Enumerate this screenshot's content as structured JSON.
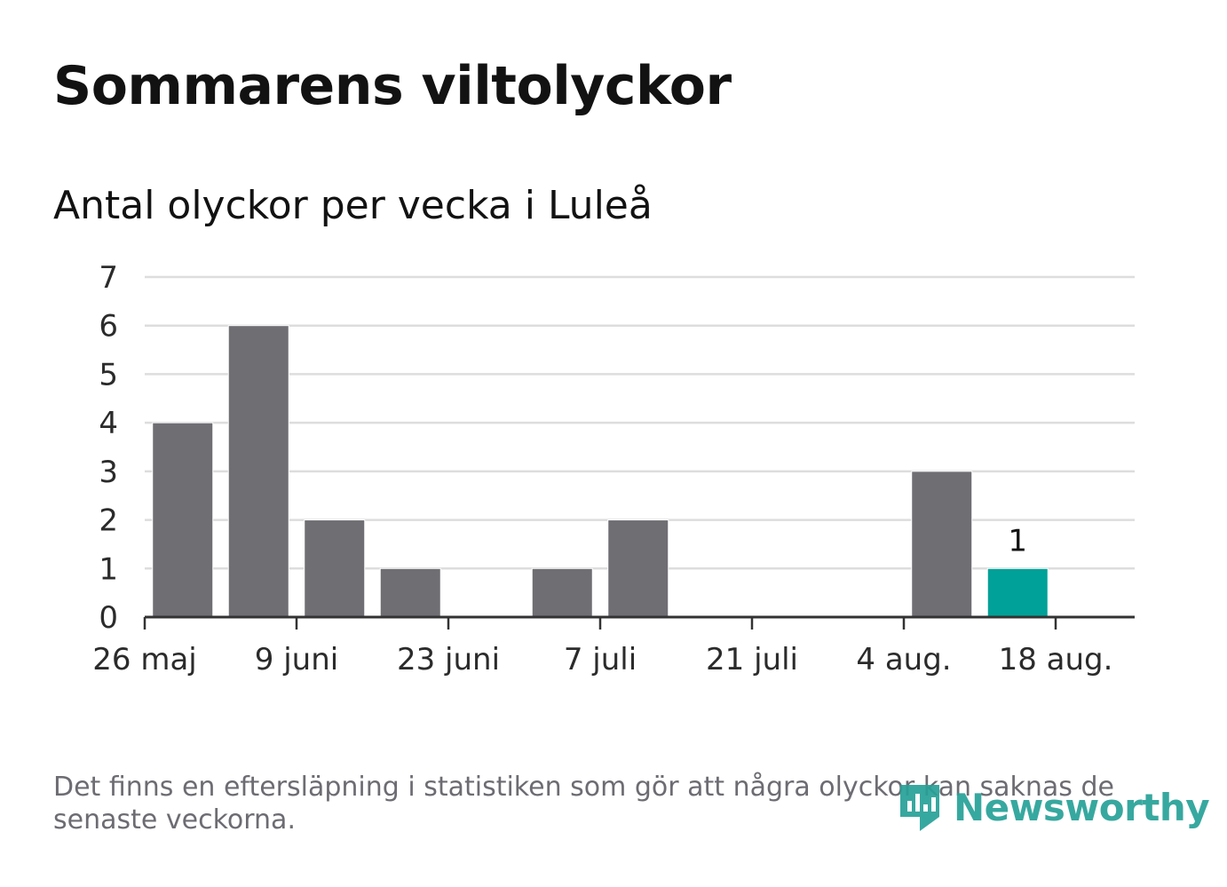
{
  "title": "Sommarens viltolyckor",
  "subtitle": "Antal olyckor per vecka i Luleå",
  "footnote": "Det finns en eftersläpning i statistiken som gör att några olyckor kan saknas de senaste veckorna.",
  "brand": {
    "name": "Newsworthy",
    "icon": "newsworthy-logo-icon"
  },
  "colors": {
    "bar": "#6f6e73",
    "highlight": "#00a198",
    "grid": "#dddddd",
    "axis": "#333333",
    "brand": "#27a197"
  },
  "chart_data": {
    "type": "bar",
    "x": [
      "2019-05-27",
      "2019-06-03",
      "2019-06-10",
      "2019-06-17",
      "2019-06-24",
      "2019-07-01",
      "2019-07-08",
      "2019-07-15",
      "2019-07-22",
      "2019-07-29",
      "2019-08-05",
      "2019-08-12"
    ],
    "values": [
      4,
      6,
      2,
      1,
      0,
      1,
      2,
      0,
      0,
      0,
      3,
      1
    ],
    "highlight_index": 11,
    "data_labels": [
      {
        "index": 11,
        "text": "1"
      }
    ],
    "x_ticks": [
      "26 maj",
      "9 juni",
      "23 juni",
      "7 juli",
      "21 juli",
      "4 aug.",
      "18 aug."
    ],
    "y_ticks": [
      "0",
      "1",
      "2",
      "3",
      "4",
      "5",
      "6",
      "7"
    ],
    "ylim": [
      0,
      7
    ],
    "grid": true,
    "legend": "none"
  }
}
